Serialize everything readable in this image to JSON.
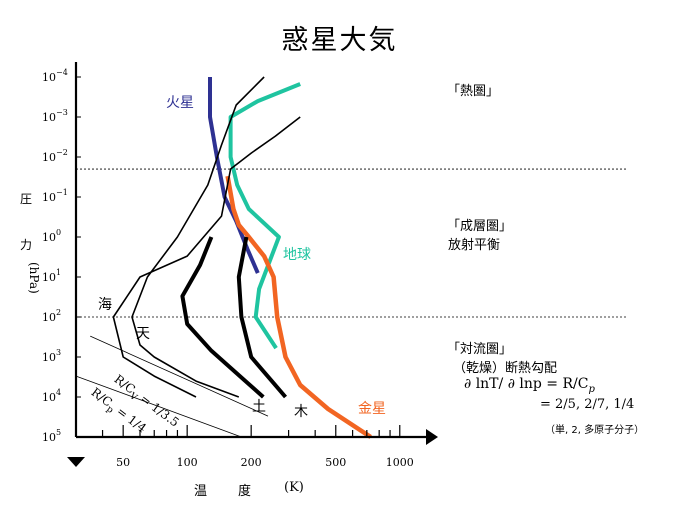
{
  "title": "惑星大気",
  "chart_data": {
    "type": "line",
    "title": "惑星大気",
    "xlabel": "温 度 (K)",
    "ylabel": "圧 力 (hPa)",
    "x_scale": "log",
    "y_scale": "log-inverted",
    "xlim": [
      30,
      1300
    ],
    "ylim": [
      100000,
      0.0001
    ],
    "x_ticks_major": [
      50,
      100,
      200,
      500,
      1000
    ],
    "x_tick_labels": [
      "50",
      "100",
      "200",
      "500",
      "1000"
    ],
    "y_ticks": [
      0.0001,
      0.001,
      0.01,
      0.1,
      1,
      10,
      100,
      1000,
      10000,
      100000
    ],
    "y_tick_labels": [
      {
        "base": "10",
        "exp": "−4"
      },
      {
        "base": "10",
        "exp": "−3"
      },
      {
        "base": "10",
        "exp": "−2"
      },
      {
        "base": "10",
        "exp": "−1"
      },
      {
        "base": "10",
        "exp": "0"
      },
      {
        "base": "10",
        "exp": "1"
      },
      {
        "base": "10",
        "exp": "2"
      },
      {
        "base": "10",
        "exp": "3"
      },
      {
        "base": "10",
        "exp": "4"
      },
      {
        "base": "10",
        "exp": "5"
      }
    ],
    "boundary_lines_p": [
      0.02,
      100
    ],
    "series": [
      {
        "name": "火星",
        "color": "#2e3192",
        "width": 4,
        "x": [
          128,
          128,
          138,
          150,
          170,
          192,
          215
        ],
        "y": [
          0.0001,
          0.001,
          0.01,
          0.1,
          0.4,
          2,
          8
        ]
      },
      {
        "name": "地球",
        "color": "#1fc4a0",
        "width": 4,
        "x": [
          340,
          215,
          160,
          160,
          172,
          195,
          270,
          218,
          210,
          262
        ],
        "y": [
          0.00015,
          0.0004,
          0.001,
          0.01,
          0.05,
          0.2,
          1,
          20,
          100,
          600
        ]
      },
      {
        "name": "金星",
        "color": "#f26522",
        "width": 4.5,
        "x": [
          155,
          165,
          175,
          195,
          230,
          255,
          265,
          290,
          340,
          460,
          730
        ],
        "y": [
          0.03,
          0.2,
          0.5,
          1,
          3,
          10,
          100,
          1000,
          5000,
          20000,
          100000
        ]
      },
      {
        "name": "木",
        "color": "#000000",
        "width": 4,
        "x": [
          190,
          175,
          180,
          200,
          290
        ],
        "y": [
          1,
          10,
          100,
          1000,
          10000
        ]
      },
      {
        "name": "土",
        "color": "#000000",
        "width": 4,
        "x": [
          130,
          115,
          95,
          100,
          130,
          228
        ],
        "y": [
          1,
          5,
          30,
          150,
          700,
          10000
        ]
      },
      {
        "name": "天",
        "color": "#000000",
        "width": 1.6,
        "x": [
          230,
          170,
          145,
          125,
          90,
          65,
          55,
          60,
          70,
          110,
          175
        ],
        "y": [
          0.0001,
          0.0005,
          0.005,
          0.05,
          1,
          10,
          100,
          500,
          1000,
          4000,
          10000
        ]
      },
      {
        "name": "海",
        "color": "#000000",
        "width": 1.6,
        "x": [
          340,
          260,
          200,
          160,
          145,
          100,
          60,
          45,
          50,
          70,
          110
        ],
        "y": [
          0.001,
          0.003,
          0.008,
          0.02,
          0.3,
          3,
          10,
          100,
          1000,
          3000,
          10000
        ]
      }
    ],
    "adiabats": [
      {
        "label": "R/Cv = 1/3.5",
        "x": [
          35,
          240
        ],
        "y": [
          300,
          30000
        ]
      },
      {
        "label": "R/Cp = 1/4",
        "x": [
          30,
          180
        ],
        "y": [
          3000,
          100000
        ]
      }
    ],
    "annotations": {
      "thermo": "「熱圏」",
      "strato_1": "「成層圏」",
      "strato_2": "放射平衡",
      "tropo_1": "「対流圏」",
      "tropo_2": "（乾燥）断熱勾配",
      "tropo_3": "∂ lnT/ ∂ lnp = R/C",
      "tropo_3_sub": "p",
      "tropo_4": "= 2/5, 2/7, 1/4",
      "tropo_5": "（単, 2, 多原子分子）",
      "adiabat_1": "R/C",
      "adiabat_1_sub": "V",
      "adiabat_1_tail": " = 1/3.5",
      "adiabat_2": "R/C",
      "adiabat_2_sub": "p",
      "adiabat_2_tail": " = 1/4"
    }
  },
  "axis_text": {
    "y_chars": [
      "圧",
      "力"
    ],
    "y_unit": "(hPa)",
    "x_chars": [
      "温",
      "度"
    ],
    "x_unit": "(K)"
  },
  "colors": {
    "mars": "#2e3192",
    "earth": "#1fc4a0",
    "venus": "#f26522",
    "axes": "#000000"
  }
}
